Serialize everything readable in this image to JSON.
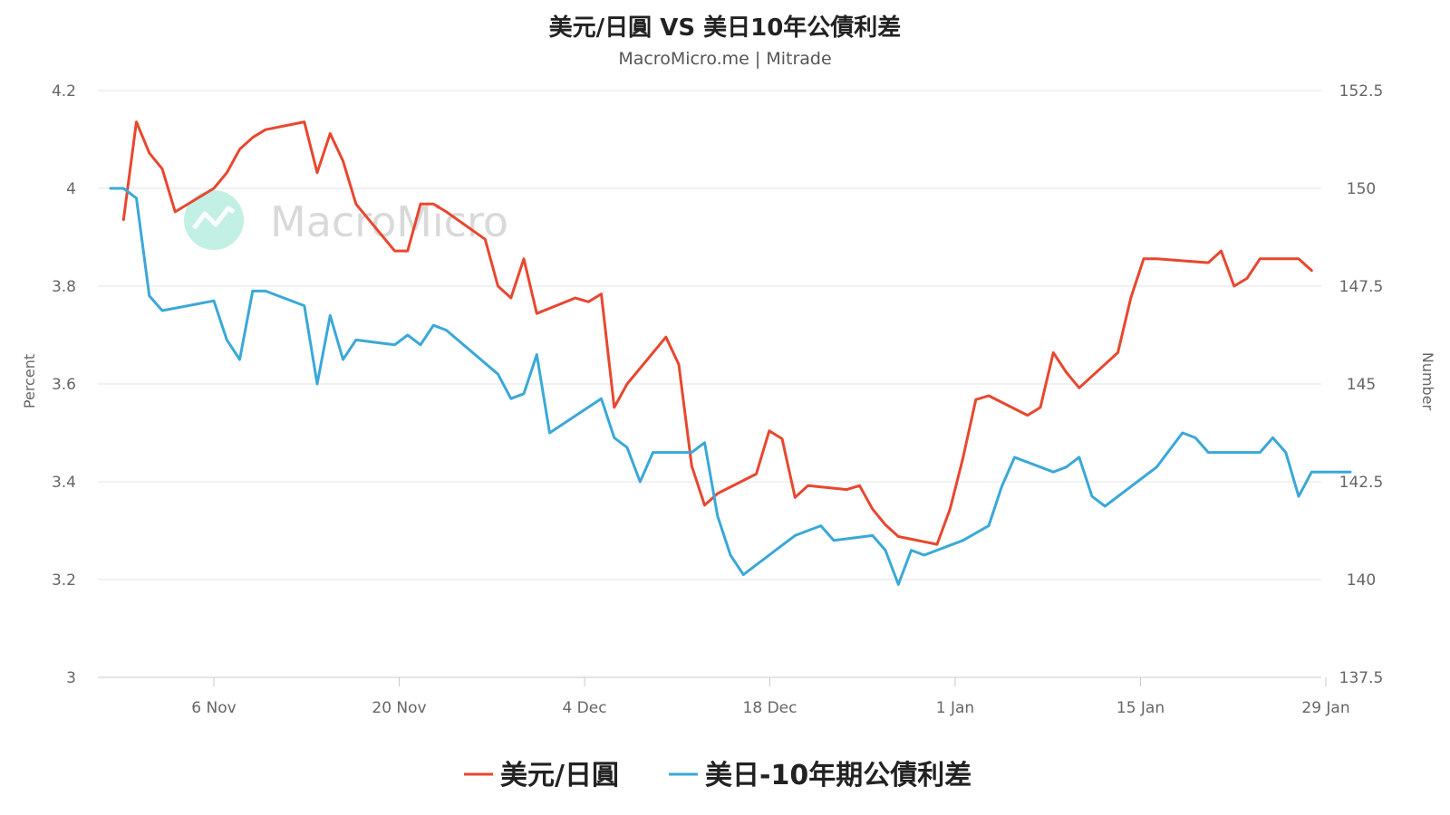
{
  "chart_data": {
    "type": "line",
    "title": "美元/日圓 VS 美日10年公債利差",
    "subtitle": "MacroMicro.me | Mitrade",
    "watermark": "MacroMicro",
    "x_tick_labels": [
      "6 Nov",
      "20 Nov",
      "4 Dec",
      "18 Dec",
      "1 Jan",
      "15 Jan",
      "29 Jan"
    ],
    "left_axis": {
      "label": "Percent",
      "min": 3.0,
      "max": 4.2,
      "ticks": [
        3,
        3.2,
        3.4,
        3.6,
        3.8,
        4,
        4.2
      ],
      "tick_labels": [
        "3",
        "3.2",
        "3.4",
        "3.6",
        "3.8",
        "4",
        "4.2"
      ]
    },
    "right_axis": {
      "label": "Number",
      "min": 137.5,
      "max": 152.5,
      "ticks": [
        137.5,
        140,
        142.5,
        145,
        147.5,
        150,
        152.5
      ],
      "tick_labels": [
        "137.5",
        "140",
        "142.5",
        "145",
        "147.5",
        "150",
        "152.5"
      ]
    },
    "grid": true,
    "legend_position": "bottom",
    "series": [
      {
        "name": "美元/日圓",
        "axis": "right",
        "color": "#e8472f",
        "points": [
          [
            "2023-10-30",
            149.2
          ],
          [
            "2023-10-31",
            151.7
          ],
          [
            "2023-11-01",
            150.9
          ],
          [
            "2023-11-02",
            150.5
          ],
          [
            "2023-11-03",
            149.4
          ],
          [
            "2023-11-06",
            150.0
          ],
          [
            "2023-11-07",
            150.4
          ],
          [
            "2023-11-08",
            151.0
          ],
          [
            "2023-11-09",
            151.3
          ],
          [
            "2023-11-10",
            151.5
          ],
          [
            "2023-11-13",
            151.7
          ],
          [
            "2023-11-14",
            150.4
          ],
          [
            "2023-11-15",
            151.4
          ],
          [
            "2023-11-16",
            150.7
          ],
          [
            "2023-11-17",
            149.6
          ],
          [
            "2023-11-20",
            148.4
          ],
          [
            "2023-11-21",
            148.4
          ],
          [
            "2023-11-22",
            149.6
          ],
          [
            "2023-11-23",
            149.6
          ],
          [
            "2023-11-24",
            149.4
          ],
          [
            "2023-11-27",
            148.7
          ],
          [
            "2023-11-28",
            147.5
          ],
          [
            "2023-11-29",
            147.2
          ],
          [
            "2023-11-30",
            148.2
          ],
          [
            "2023-12-01",
            146.8
          ],
          [
            "2023-12-04",
            147.2
          ],
          [
            "2023-12-05",
            147.1
          ],
          [
            "2023-12-06",
            147.3
          ],
          [
            "2023-12-07",
            144.4
          ],
          [
            "2023-12-08",
            145.0
          ],
          [
            "2023-12-11",
            146.2
          ],
          [
            "2023-12-12",
            145.5
          ],
          [
            "2023-12-13",
            142.9
          ],
          [
            "2023-12-14",
            141.9
          ],
          [
            "2023-12-15",
            142.2
          ],
          [
            "2023-12-18",
            142.7
          ],
          [
            "2023-12-19",
            143.8
          ],
          [
            "2023-12-20",
            143.6
          ],
          [
            "2023-12-21",
            142.1
          ],
          [
            "2023-12-22",
            142.4
          ],
          [
            "2023-12-25",
            142.3
          ],
          [
            "2023-12-26",
            142.4
          ],
          [
            "2023-12-27",
            141.8
          ],
          [
            "2023-12-28",
            141.4
          ],
          [
            "2023-12-29",
            141.1
          ],
          [
            "2024-01-01",
            140.9
          ],
          [
            "2024-01-02",
            141.8
          ],
          [
            "2024-01-03",
            143.1
          ],
          [
            "2024-01-04",
            144.6
          ],
          [
            "2024-01-05",
            144.7
          ],
          [
            "2024-01-08",
            144.2
          ],
          [
            "2024-01-09",
            144.4
          ],
          [
            "2024-01-10",
            145.8
          ],
          [
            "2024-01-11",
            145.3
          ],
          [
            "2024-01-12",
            144.9
          ],
          [
            "2024-01-15",
            145.8
          ],
          [
            "2024-01-16",
            147.2
          ],
          [
            "2024-01-17",
            148.2
          ],
          [
            "2024-01-18",
            148.2
          ],
          [
            "2024-01-22",
            148.1
          ],
          [
            "2024-01-23",
            148.4
          ],
          [
            "2024-01-24",
            147.5
          ],
          [
            "2024-01-25",
            147.7
          ],
          [
            "2024-01-26",
            148.2
          ],
          [
            "2024-01-29",
            148.2
          ],
          [
            "2024-01-30",
            147.9
          ]
        ]
      },
      {
        "name": "美日-10年期公債利差",
        "axis": "left",
        "color": "#3aa8d8",
        "points": [
          [
            "2023-10-29",
            4.0
          ],
          [
            "2023-10-30",
            4.0
          ],
          [
            "2023-10-31",
            3.98
          ],
          [
            "2023-11-01",
            3.78
          ],
          [
            "2023-11-02",
            3.75
          ],
          [
            "2023-11-06",
            3.77
          ],
          [
            "2023-11-07",
            3.69
          ],
          [
            "2023-11-08",
            3.65
          ],
          [
            "2023-11-09",
            3.79
          ],
          [
            "2023-11-10",
            3.79
          ],
          [
            "2023-11-13",
            3.76
          ],
          [
            "2023-11-14",
            3.6
          ],
          [
            "2023-11-15",
            3.74
          ],
          [
            "2023-11-16",
            3.65
          ],
          [
            "2023-11-17",
            3.69
          ],
          [
            "2023-11-20",
            3.68
          ],
          [
            "2023-11-21",
            3.7
          ],
          [
            "2023-11-22",
            3.68
          ],
          [
            "2023-11-23",
            3.72
          ],
          [
            "2023-11-24",
            3.71
          ],
          [
            "2023-11-28",
            3.62
          ],
          [
            "2023-11-29",
            3.57
          ],
          [
            "2023-11-30",
            3.58
          ],
          [
            "2023-12-01",
            3.66
          ],
          [
            "2023-12-02",
            3.5
          ],
          [
            "2023-12-06",
            3.57
          ],
          [
            "2023-12-07",
            3.49
          ],
          [
            "2023-12-08",
            3.47
          ],
          [
            "2023-12-09",
            3.4
          ],
          [
            "2023-12-10",
            3.46
          ],
          [
            "2023-12-13",
            3.46
          ],
          [
            "2023-12-14",
            3.48
          ],
          [
            "2023-12-15",
            3.33
          ],
          [
            "2023-12-16",
            3.25
          ],
          [
            "2023-12-17",
            3.21
          ],
          [
            "2023-12-20",
            3.27
          ],
          [
            "2023-12-21",
            3.29
          ],
          [
            "2023-12-22",
            3.3
          ],
          [
            "2023-12-23",
            3.31
          ],
          [
            "2023-12-24",
            3.28
          ],
          [
            "2023-12-27",
            3.29
          ],
          [
            "2023-12-28",
            3.26
          ],
          [
            "2023-12-29",
            3.19
          ],
          [
            "2023-12-30",
            3.26
          ],
          [
            "2023-12-31",
            3.25
          ],
          [
            "2024-01-03",
            3.28
          ],
          [
            "2024-01-05",
            3.31
          ],
          [
            "2024-01-06",
            3.39
          ],
          [
            "2024-01-07",
            3.45
          ],
          [
            "2024-01-10",
            3.42
          ],
          [
            "2024-01-11",
            3.43
          ],
          [
            "2024-01-12",
            3.45
          ],
          [
            "2024-01-13",
            3.37
          ],
          [
            "2024-01-14",
            3.35
          ],
          [
            "2024-01-18",
            3.43
          ],
          [
            "2024-01-20",
            3.5
          ],
          [
            "2024-01-21",
            3.49
          ],
          [
            "2024-01-22",
            3.46
          ],
          [
            "2024-01-26",
            3.46
          ],
          [
            "2024-01-27",
            3.49
          ],
          [
            "2024-01-28",
            3.46
          ],
          [
            "2024-01-29",
            3.37
          ],
          [
            "2024-01-30",
            3.42
          ],
          [
            "2024-02-02",
            3.42
          ]
        ]
      }
    ]
  }
}
